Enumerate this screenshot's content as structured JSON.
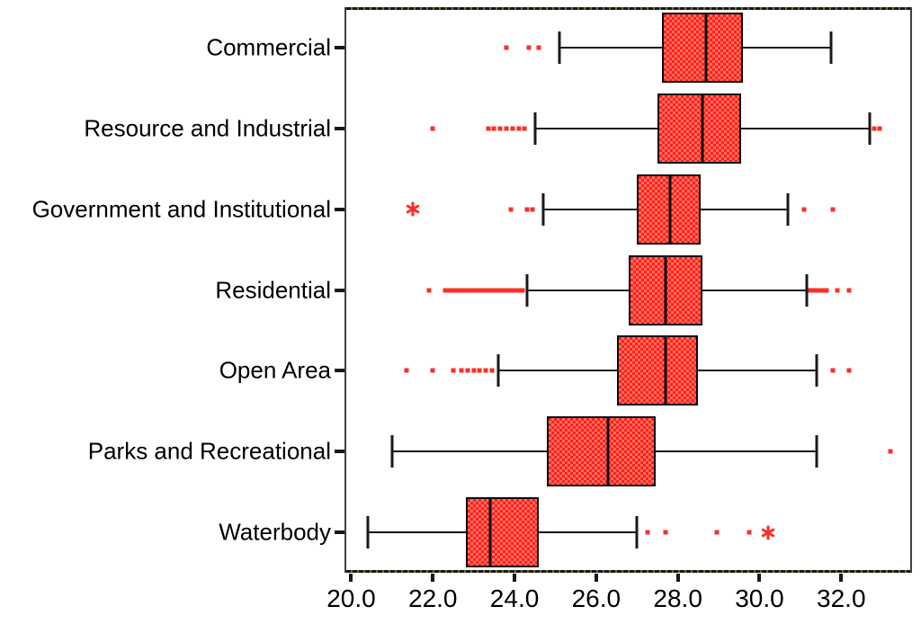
{
  "chart_data": {
    "type": "boxplot",
    "orientation": "horizontal",
    "title": "",
    "xlabel": "",
    "ylabel": "",
    "grid": false,
    "legend": false,
    "x_axis": {
      "min": 19.88,
      "max": 33.69,
      "ticks": [
        {
          "value": 20.0,
          "label": "20.0"
        },
        {
          "value": 22.0,
          "label": "22.0"
        },
        {
          "value": 24.0,
          "label": "24.0"
        },
        {
          "value": 26.0,
          "label": "26.0"
        },
        {
          "value": 28.0,
          "label": "28.0"
        },
        {
          "value": 30.0,
          "label": "30.0"
        },
        {
          "value": 32.0,
          "label": "32.0"
        }
      ]
    },
    "categories": [
      {
        "label": "Commercial",
        "whisker_low": 25.1,
        "q1": 27.6,
        "median": 28.7,
        "q3": 29.6,
        "whisker_high": 31.75,
        "outliers": [
          23.8,
          24.35,
          24.6
        ],
        "extremes": []
      },
      {
        "label": "Resource and Industrial",
        "whisker_low": 24.5,
        "q1": 27.5,
        "median": 28.6,
        "q3": 29.55,
        "whisker_high": 32.7,
        "outliers": [
          22.0,
          23.35,
          23.5,
          23.65,
          23.8,
          23.95,
          24.1,
          24.25,
          32.8,
          32.95
        ],
        "extremes": []
      },
      {
        "label": "Government and Institutional",
        "whisker_low": 24.7,
        "q1": 27.0,
        "median": 27.8,
        "q3": 28.55,
        "whisker_high": 30.7,
        "outliers": [
          23.9,
          24.3,
          24.45,
          31.1,
          31.8
        ],
        "extremes": [
          21.5
        ]
      },
      {
        "label": "Residential",
        "whisker_low": 24.3,
        "q1": 26.8,
        "median": 27.7,
        "q3": 28.6,
        "whisker_high": 31.15,
        "outliers": [
          21.9,
          22.3,
          22.4,
          22.5,
          22.6,
          22.7,
          22.8,
          22.9,
          23.0,
          23.1,
          23.2,
          23.3,
          23.4,
          23.5,
          23.6,
          23.7,
          23.8,
          23.9,
          24.0,
          24.1,
          24.2,
          31.25,
          31.35,
          31.45,
          31.55,
          31.65,
          31.9,
          32.2
        ],
        "extremes": []
      },
      {
        "label": "Open Area",
        "whisker_low": 23.6,
        "q1": 26.5,
        "median": 27.7,
        "q3": 28.5,
        "whisker_high": 31.4,
        "outliers": [
          21.35,
          22.0,
          22.5,
          22.7,
          22.85,
          23.0,
          23.15,
          23.3,
          23.45,
          31.8,
          32.2
        ],
        "extremes": []
      },
      {
        "label": "Parks and Recreational",
        "whisker_low": 21.0,
        "q1": 24.8,
        "median": 26.3,
        "q3": 27.45,
        "whisker_high": 31.4,
        "outliers": [
          33.2
        ],
        "extremes": []
      },
      {
        "label": "Waterbody",
        "whisker_low": 20.4,
        "q1": 22.8,
        "median": 23.4,
        "q3": 24.6,
        "whisker_high": 27.0,
        "outliers": [
          27.25,
          27.7,
          28.95,
          29.75
        ],
        "extremes": [
          30.2
        ]
      }
    ],
    "colors": {
      "box_fill": "#ff1f1d",
      "box_fill_pattern": "#fc6e5e",
      "stroke": "#0a0a0a",
      "outlier": "#fb2f28",
      "frame": "#3e3e4a"
    },
    "markers": {
      "outlier_symbol": "dot",
      "extreme_symbol": "asterisk"
    }
  }
}
